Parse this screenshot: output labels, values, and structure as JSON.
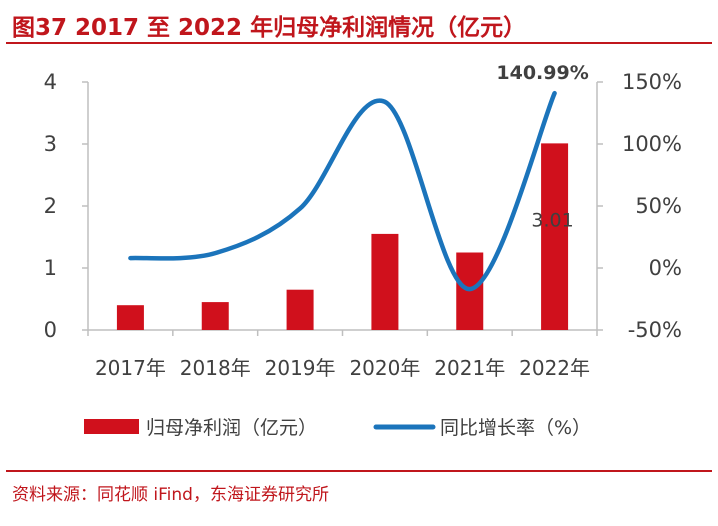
{
  "header": {
    "title": "图37  2017 至 2022 年归母净利润情况（亿元）"
  },
  "footer": {
    "source": "资料来源：同花顺 iFind，东海证券研究所"
  },
  "colors": {
    "accent": "#c0161c",
    "bar": "#d0101c",
    "line": "#1b74bb",
    "axis": "#bfbfbf",
    "text": "#404040"
  },
  "chart_data": {
    "type": "bar",
    "title": "2017 至 2022 年归母净利润情况（亿元）",
    "categories": [
      "2017年",
      "2018年",
      "2019年",
      "2020年",
      "2021年",
      "2022年"
    ],
    "series": [
      {
        "name": "归母净利润（亿元）",
        "type": "bar",
        "axis": "left",
        "values": [
          0.4,
          0.45,
          0.65,
          1.55,
          1.25,
          3.01
        ]
      },
      {
        "name": "同比增长率（%）",
        "type": "line",
        "axis": "right",
        "values": [
          8,
          12,
          48,
          134,
          -17,
          140.99
        ]
      }
    ],
    "left_axis": {
      "ylim": [
        0,
        4
      ],
      "ticks": [
        "0",
        "1",
        "2",
        "3",
        "4"
      ]
    },
    "right_axis": {
      "ylim": [
        -50,
        150
      ],
      "ticks": [
        "-50%",
        "0%",
        "50%",
        "100%",
        "150%"
      ]
    },
    "annotations": {
      "bar_label": "3.01",
      "line_label": "140.99%"
    },
    "legend": {
      "placement": "bottom",
      "items": [
        "归母净利润（亿元）",
        "同比增长率（%）"
      ]
    }
  }
}
